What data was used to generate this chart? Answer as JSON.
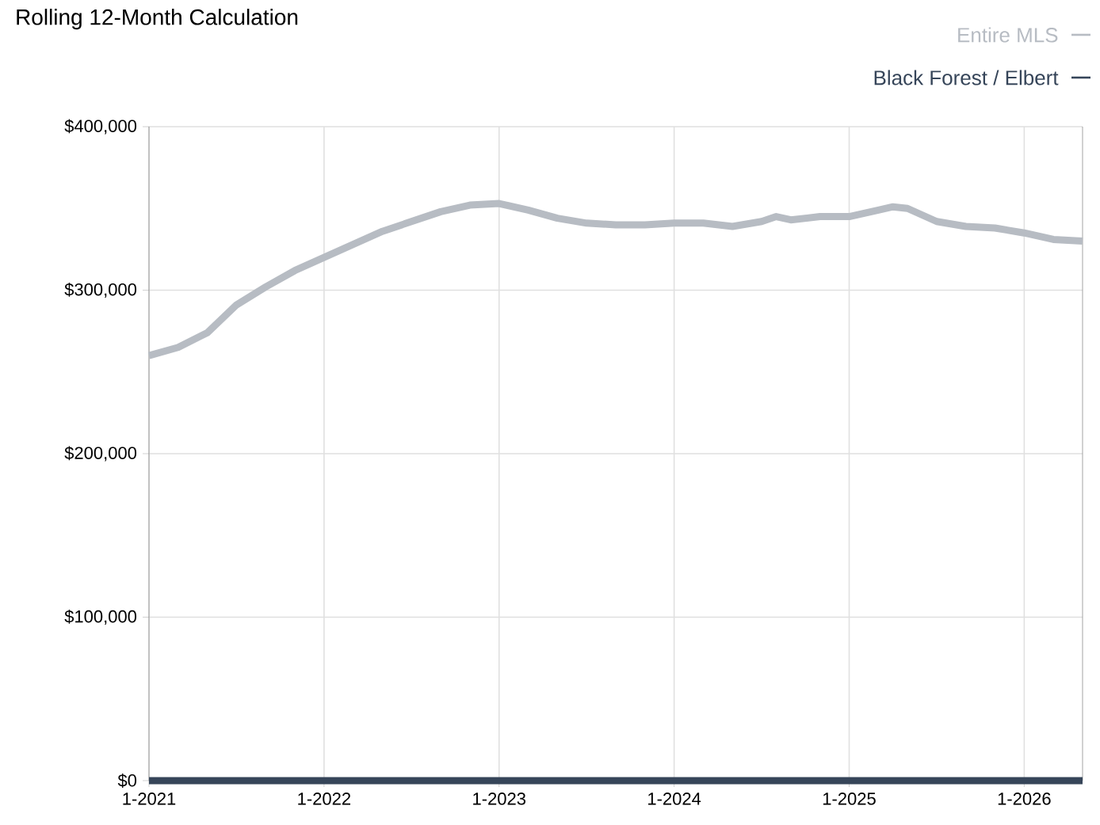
{
  "chart_data": {
    "type": "line",
    "title": "Rolling 12-Month Calculation",
    "x": [
      "2021-01",
      "2021-03",
      "2021-05",
      "2021-07",
      "2021-09",
      "2021-11",
      "2022-01",
      "2022-03",
      "2022-05",
      "2022-07",
      "2022-09",
      "2022-11",
      "2023-01",
      "2023-03",
      "2023-05",
      "2023-07",
      "2023-09",
      "2023-11",
      "2024-01",
      "2024-03",
      "2024-05",
      "2024-07",
      "2024-08",
      "2024-09",
      "2024-11",
      "2025-01",
      "2025-03",
      "2025-04",
      "2025-05",
      "2025-07",
      "2025-09",
      "2025-11",
      "2026-01",
      "2026-03",
      "2026-05"
    ],
    "series": [
      {
        "name": "Entire MLS",
        "color": "#b7bcc3",
        "values": [
          260000,
          265000,
          274000,
          291000,
          302000,
          312000,
          320000,
          328000,
          336000,
          342000,
          348000,
          352000,
          353000,
          349000,
          344000,
          341000,
          340000,
          340000,
          341000,
          341000,
          339000,
          342000,
          345000,
          343000,
          345000,
          345000,
          349000,
          351000,
          350000,
          342000,
          339000,
          338000,
          335000,
          331000,
          330000
        ]
      },
      {
        "name": "Black Forest / Elbert",
        "color": "#364559",
        "values": [
          0,
          0,
          0,
          0,
          0,
          0,
          0,
          0,
          0,
          0,
          0,
          0,
          0,
          0,
          0,
          0,
          0,
          0,
          0,
          0,
          0,
          0,
          0,
          0,
          0,
          0,
          0,
          0,
          0,
          0,
          0,
          0,
          0,
          0,
          0
        ]
      }
    ],
    "xlim": [
      "2021-01",
      "2026-05"
    ],
    "xticks": [
      {
        "value": "2021-01",
        "label": "1-2021"
      },
      {
        "value": "2022-01",
        "label": "1-2022"
      },
      {
        "value": "2023-01",
        "label": "1-2023"
      },
      {
        "value": "2024-01",
        "label": "1-2024"
      },
      {
        "value": "2025-01",
        "label": "1-2025"
      },
      {
        "value": "2026-01",
        "label": "1-2026"
      }
    ],
    "ylim": [
      0,
      400000
    ],
    "yticks": [
      {
        "value": 0,
        "label": "$0"
      },
      {
        "value": 100000,
        "label": "$100,000"
      },
      {
        "value": 200000,
        "label": "$200,000"
      },
      {
        "value": 300000,
        "label": "$300,000"
      },
      {
        "value": 400000,
        "label": "$400,000"
      }
    ],
    "grid": true,
    "legend": "top right",
    "marker": "none",
    "line_style": "solid"
  }
}
